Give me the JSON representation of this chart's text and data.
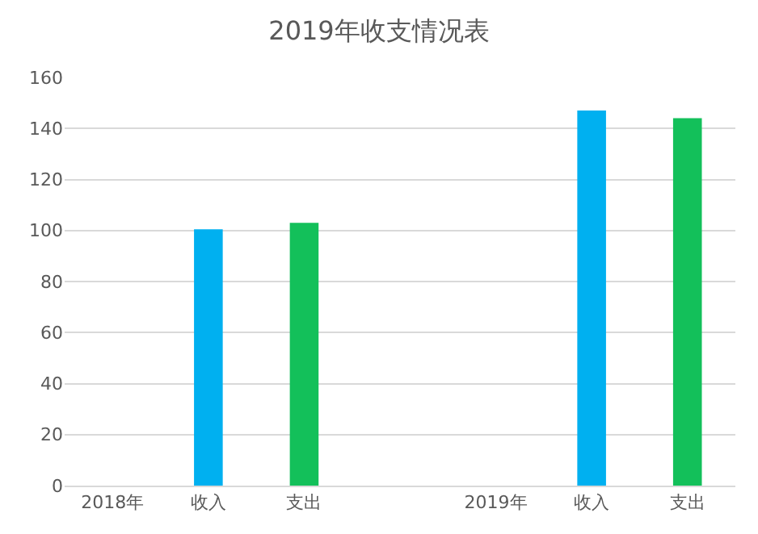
{
  "chart_data": {
    "type": "bar",
    "title": "2019年收支情况表",
    "categories": [
      "2018年",
      "收入",
      "支出",
      null,
      "2019年",
      "收入",
      "支出"
    ],
    "values": [
      null,
      100.5,
      103,
      null,
      null,
      147,
      144
    ],
    "colors": [
      "#00b0f0",
      "#00b0f0",
      "#13c05a",
      "#00b0f0",
      "#00b0f0",
      "#00b0f0",
      "#13c05a"
    ],
    "ylim": [
      0,
      160
    ],
    "yticks": [
      0,
      20,
      40,
      60,
      80,
      100,
      120,
      140,
      160
    ],
    "grid": "y"
  }
}
